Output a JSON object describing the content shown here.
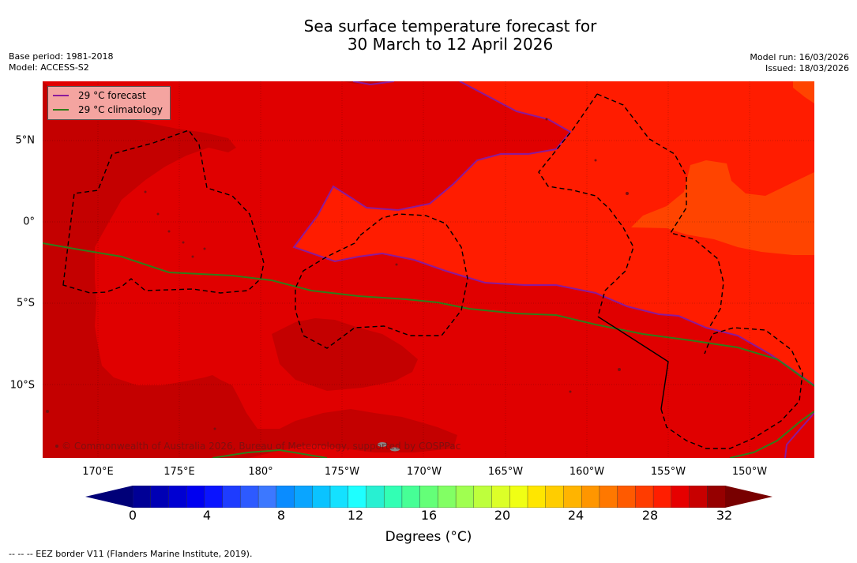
{
  "title": {
    "line1": "Sea surface temperature forecast for",
    "line2": "30 March to 12 April 2026"
  },
  "meta_left": {
    "base_period": "Base period: 1981-2018",
    "model": "Model: ACCESS-S2"
  },
  "meta_right": {
    "model_run": "Model run: 16/03/2026",
    "issued": "Issued: 18/03/2026"
  },
  "legend": {
    "items": [
      {
        "label": "29 °C  forecast",
        "color": "#8b1a9b"
      },
      {
        "label": "29 °C  climatology",
        "color": "#2f7d1a"
      }
    ]
  },
  "map": {
    "lon_ticks": [
      {
        "label": "170°E"
      },
      {
        "label": "175°E"
      },
      {
        "label": "180°"
      },
      {
        "label": "175°W"
      },
      {
        "label": "170°W"
      },
      {
        "label": "165°W"
      },
      {
        "label": "160°W"
      },
      {
        "label": "155°W"
      },
      {
        "label": "150°W"
      }
    ],
    "lat_ticks": [
      {
        "label": "5°N"
      },
      {
        "label": "0°"
      },
      {
        "label": "5°S"
      },
      {
        "label": "10°S"
      }
    ],
    "copyright": "© Commonwealth of Australia 2026, Bureau of Meteorology, supported by COSPPac",
    "colors": {
      "c30": "#c40000",
      "c29": "#e00000",
      "c28": "#ff1c00",
      "c27": "#ff4400"
    }
  },
  "colorbar": {
    "ticks": [
      "0",
      "4",
      "8",
      "12",
      "16",
      "20",
      "24",
      "28",
      "32"
    ],
    "label": "Degrees ($^\\circ$C)",
    "label_display": "Degrees (°C)",
    "colors": [
      "#000096",
      "#0000b4",
      "#0000d2",
      "#0000f0",
      "#0a14ff",
      "#1e3cff",
      "#2d5aff",
      "#3c78ff",
      "#0a8cff",
      "#0aa5ff",
      "#0ac3ff",
      "#14e1ff",
      "#1effff",
      "#28f0d2",
      "#32ffb4",
      "#46ff96",
      "#64ff78",
      "#82ff64",
      "#a0ff50",
      "#beff3c",
      "#dcff28",
      "#f0ff14",
      "#ffe600",
      "#ffcd00",
      "#ffb400",
      "#ff9600",
      "#ff7800",
      "#ff5a00",
      "#ff3c00",
      "#ff1e00",
      "#e60000",
      "#c80000",
      "#960000"
    ],
    "under_color": "#000078",
    "over_color": "#780000"
  },
  "footnote": "--  --  -- EEZ border V11 (Flanders Marine Institute, 2019)."
}
